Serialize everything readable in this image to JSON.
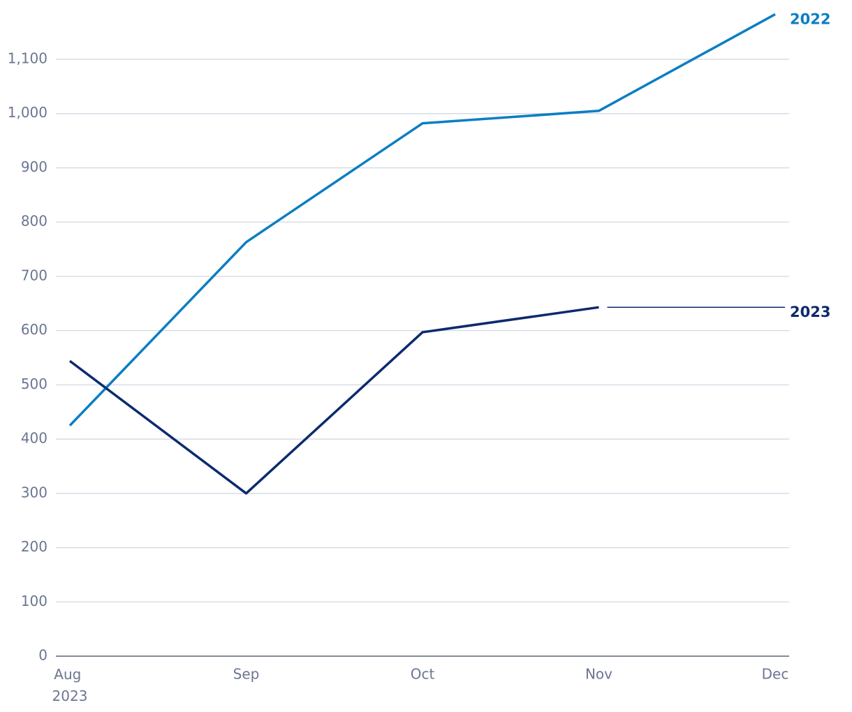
{
  "chart_data": {
    "type": "line",
    "categories": [
      "Aug 2023",
      "Sep",
      "Oct",
      "Nov",
      "Dec"
    ],
    "series": [
      {
        "name": "2022",
        "color": "#0b7ec3",
        "values": [
          425,
          763,
          982,
          1005,
          1183
        ]
      },
      {
        "name": "2023",
        "color": "#0c2a6e",
        "values": [
          544,
          300,
          597,
          643,
          null
        ]
      }
    ],
    "ylim": [
      0,
      1190
    ],
    "yticks": [
      0,
      100,
      200,
      300,
      400,
      500,
      600,
      700,
      800,
      900,
      {
        "value": 1000,
        "label": "1,000"
      },
      {
        "value": 1100,
        "label": "1,100"
      }
    ],
    "grid": true
  }
}
